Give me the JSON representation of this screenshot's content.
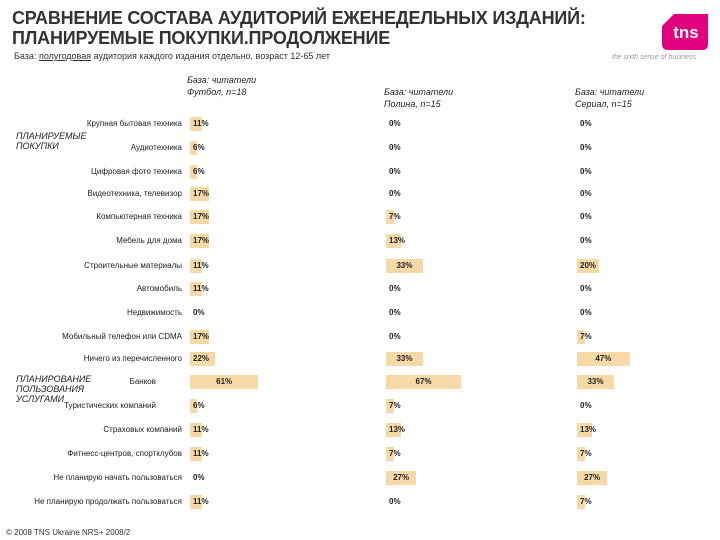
{
  "header": {
    "title_line1": "СРАВНЕНИЕ СОСТАВА АУДИТОРИЙ ЕЖЕНЕДЕЛЬНЫХ ИЗДАНИЙ:",
    "title_line2": "ПЛАНИРУЕМЫЕ ПОКУПКИ.ПРОДОЛЖЕНИЕ",
    "base_prefix": "База: ",
    "base_underlined": "полугодовая",
    "base_rest": " аудитория каждого издания отдельно, возраст 12-65 лет"
  },
  "logo": {
    "text": "tns",
    "tagline": "the sixth sense of business",
    "color": "#e3007e"
  },
  "footer": "© 2008 TNS Ukraine NRS+ 2008/2",
  "colors": {
    "bar": "#f5d9a6"
  },
  "groups": [
    {
      "label": "ПЛАНИРУЕМЫЕ ПОКУПКИ"
    },
    {
      "label": "ПЛАНИРОВАНИЕ ПОЛЬЗОВАНИЯ УСЛУГАМИ"
    }
  ],
  "chart_data": {
    "type": "bar",
    "orientation": "horizontal",
    "categories": [
      "Крупная бытовая техника",
      "Аудиотехника",
      "Цифровая фото техника",
      "Видеотехника, телевизор",
      "Компьютерная техника",
      "Мебель для дома",
      "Строительные материалы",
      "Автомобиль",
      "Недвижимость",
      "Мобильный телефон или CDMA",
      "Ничего из перечисленного",
      "Банков",
      "Туристических компаний",
      "Страховых компаний",
      "Фитнесс-центров, спортклубов",
      "Не планирую начать пользоваться",
      "Не планирую продолжать пользоваться"
    ],
    "series": [
      {
        "name": "База: читатели Футбол, n=18",
        "values": [
          11,
          6,
          6,
          17,
          17,
          17,
          11,
          11,
          0,
          17,
          22,
          61,
          6,
          11,
          11,
          0,
          11
        ],
        "labels": [
          "11%",
          "6%",
          "6%",
          "17%",
          "17%",
          "17%",
          "11%",
          "11%",
          "0%",
          "17%",
          "22%",
          "61%",
          "6%",
          "11%",
          "11%",
          "0%",
          "11%"
        ]
      },
      {
        "name": "База: читатели Полина, n=15",
        "values": [
          0,
          0,
          0,
          0,
          7,
          13,
          33,
          0,
          0,
          0,
          33,
          67,
          7,
          13,
          7,
          27,
          0
        ],
        "labels": [
          "0%",
          "0%",
          "0%",
          "0%",
          "7%",
          "13%",
          "33%",
          "0%",
          "0%",
          "0%",
          "33%",
          "67%",
          "7%",
          "13%",
          "7%",
          "27%",
          "0%"
        ]
      },
      {
        "name": "База: читатели Сериал, n=15",
        "values": [
          0,
          0,
          0,
          0,
          0,
          0,
          20,
          0,
          0,
          7,
          47,
          33,
          0,
          13,
          7,
          27,
          7
        ],
        "labels": [
          "0%",
          "0%",
          "0%",
          "0%",
          "0%",
          "0%",
          "20%",
          "0%",
          "0%",
          "7%",
          "47%",
          "33%",
          "0%",
          "13%",
          "7%",
          "27%",
          "7%"
        ]
      }
    ],
    "series_headers": [
      {
        "line1": "База: читатели",
        "line2": "Футбол, n=18"
      },
      {
        "line1": "База: читатели",
        "line2": "Полина, n=15"
      },
      {
        "line1": "База: читатели",
        "line2": "Сериал, n=15"
      }
    ],
    "xlim": [
      0,
      100
    ]
  }
}
